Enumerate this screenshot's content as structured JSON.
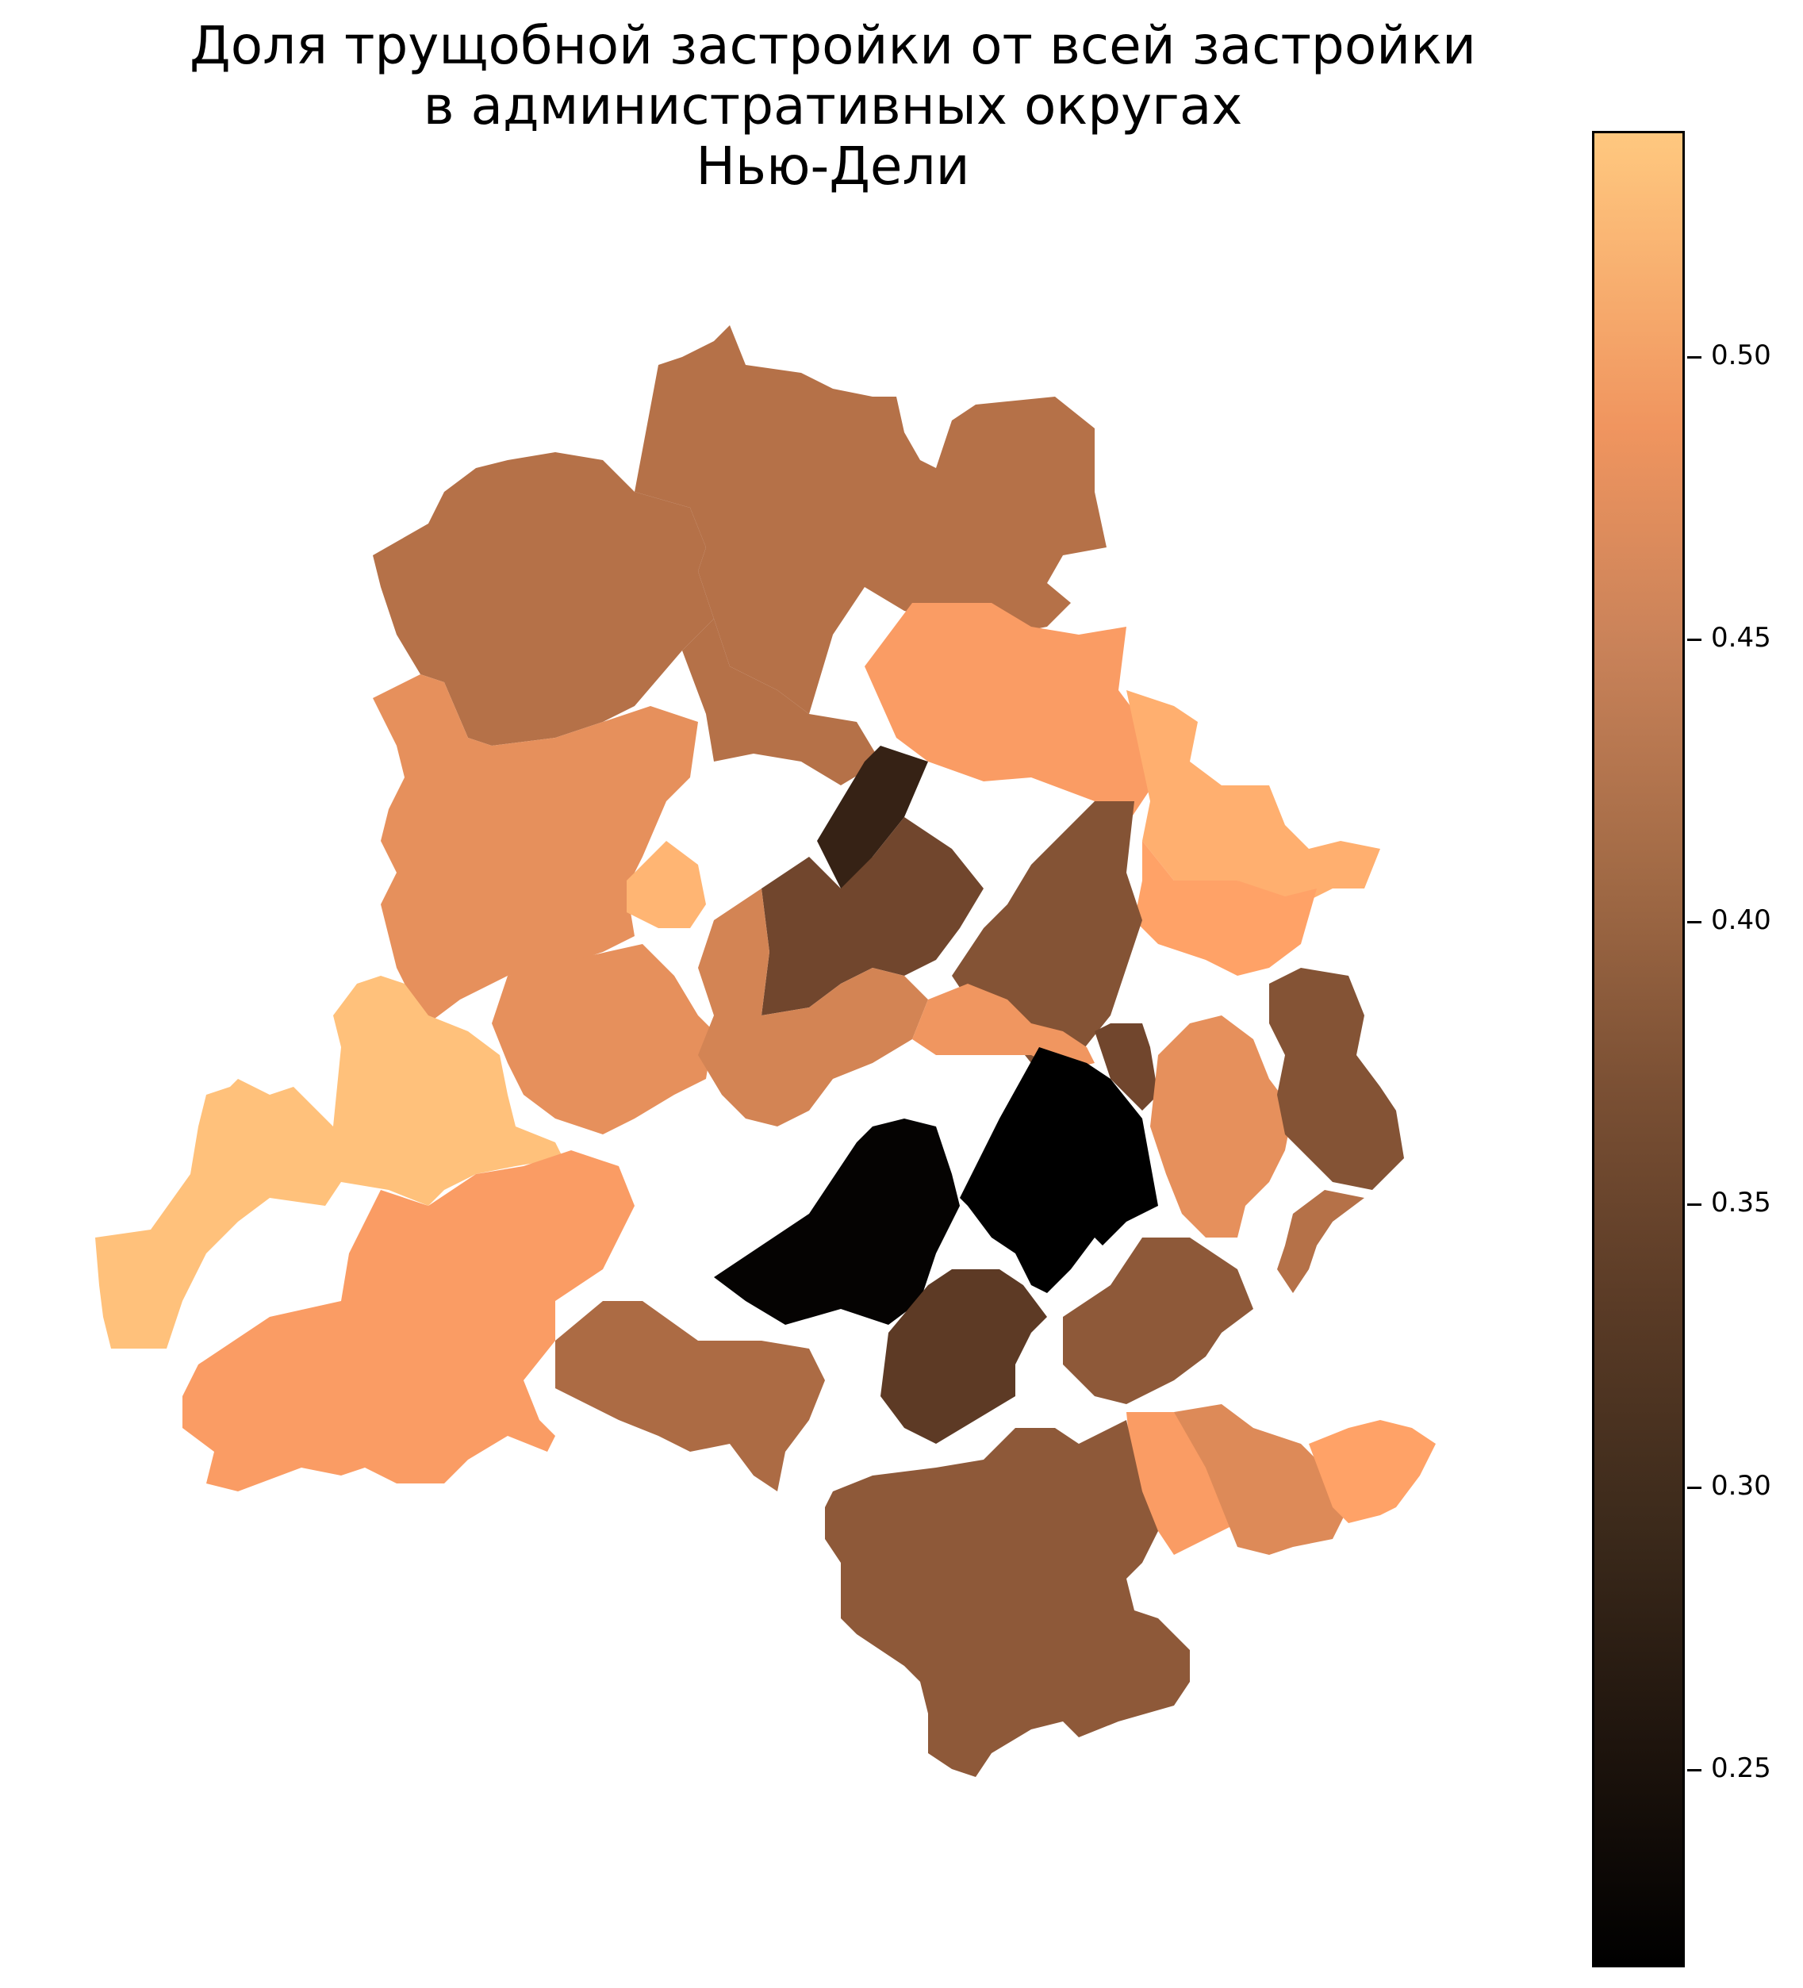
{
  "title": {
    "line1": "Доля трущобной застройки от всей застройки",
    "line2": "в административных округах",
    "line3": "Нью-Дели"
  },
  "colorbar": {
    "colormap": "copper",
    "min": 0.215,
    "max": 0.54,
    "ticks": [
      {
        "value": 0.25,
        "label": "0.25"
      },
      {
        "value": 0.3,
        "label": "0.30"
      },
      {
        "value": 0.35,
        "label": "0.35"
      },
      {
        "value": 0.4,
        "label": "0.40"
      },
      {
        "value": 0.45,
        "label": "0.45"
      },
      {
        "value": 0.5,
        "label": "0.50"
      }
    ]
  },
  "districts": [
    {
      "id": "north-1",
      "value": 0.4
    },
    {
      "id": "north-2",
      "value": 0.4
    },
    {
      "id": "north-west",
      "value": 0.4
    },
    {
      "id": "north-east-1",
      "value": 0.47
    },
    {
      "id": "north-east-2",
      "value": 0.5
    },
    {
      "id": "north-east-3",
      "value": 0.48
    },
    {
      "id": "west-1",
      "value": 0.45
    },
    {
      "id": "west-2",
      "value": 0.45
    },
    {
      "id": "west-small",
      "value": 0.51
    },
    {
      "id": "far-west",
      "value": 0.53
    },
    {
      "id": "south-west",
      "value": 0.47
    },
    {
      "id": "central-dark-1",
      "value": 0.27
    },
    {
      "id": "central-dark-2",
      "value": 0.33
    },
    {
      "id": "central-1",
      "value": 0.35
    },
    {
      "id": "central-2",
      "value": 0.43
    },
    {
      "id": "central-3",
      "value": 0.46
    },
    {
      "id": "black-1",
      "value": 0.22
    },
    {
      "id": "black-2",
      "value": 0.21
    },
    {
      "id": "east-1",
      "value": 0.33
    },
    {
      "id": "east-2",
      "value": 0.45
    },
    {
      "id": "east-3",
      "value": 0.35
    },
    {
      "id": "east-4",
      "value": 0.4
    },
    {
      "id": "south-1",
      "value": 0.31
    },
    {
      "id": "south-2",
      "value": 0.36
    },
    {
      "id": "south-3",
      "value": 0.47
    },
    {
      "id": "south-4",
      "value": 0.44
    },
    {
      "id": "south-east",
      "value": 0.48
    },
    {
      "id": "south-west-2",
      "value": 0.39
    }
  ]
}
